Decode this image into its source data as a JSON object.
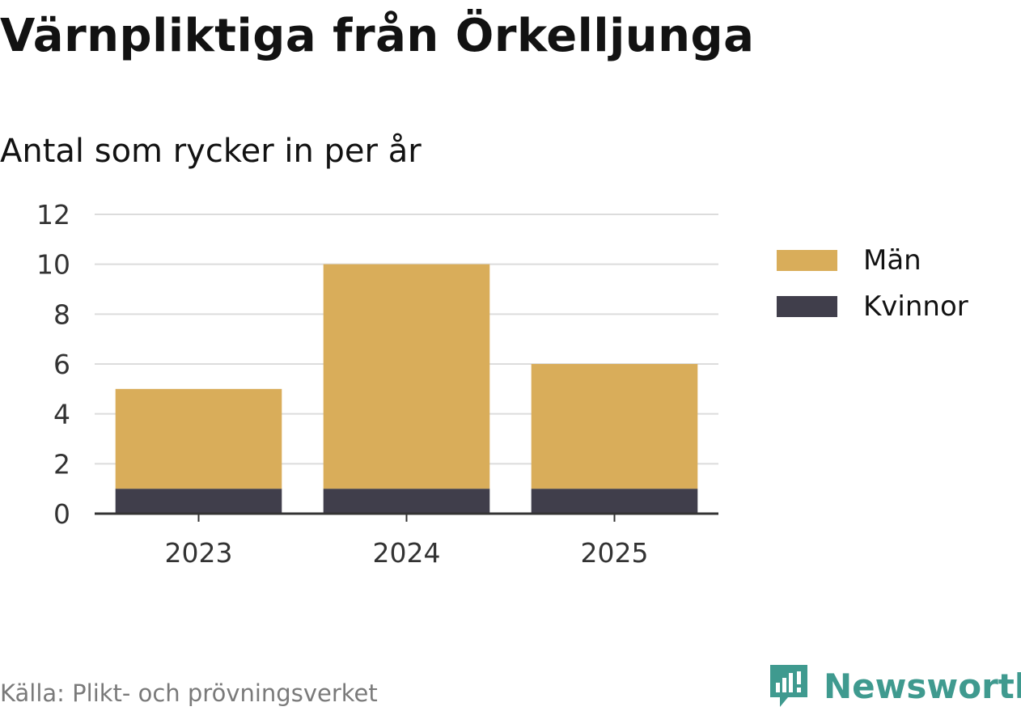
{
  "title": "Värnpliktiga från Örkelljunga",
  "subtitle": "Antal som rycker in per år",
  "source": "Källa: Plikt- och prövningsverket",
  "brand": "Newsworthy",
  "colors": {
    "man": "#d9ad5a",
    "kvinnor": "#403e4b",
    "grid": "#dcdcdc",
    "axis": "#333333",
    "brand": "#3f9a8f"
  },
  "chart_data": {
    "type": "bar",
    "stacked": true,
    "categories": [
      "2023",
      "2024",
      "2025"
    ],
    "series": [
      {
        "name": "Kvinnor",
        "values": [
          1,
          1,
          1
        ],
        "color": "#403e4b"
      },
      {
        "name": "Män",
        "values": [
          4,
          9,
          5
        ],
        "color": "#d9ad5a"
      }
    ],
    "yticks": [
      "0",
      "2",
      "4",
      "6",
      "8",
      "10",
      "12"
    ],
    "ylim": [
      0,
      12
    ],
    "xlabel": "",
    "ylabel": "",
    "grid": true,
    "legend": [
      "Män",
      "Kvinnor"
    ],
    "legend_position": "right"
  }
}
